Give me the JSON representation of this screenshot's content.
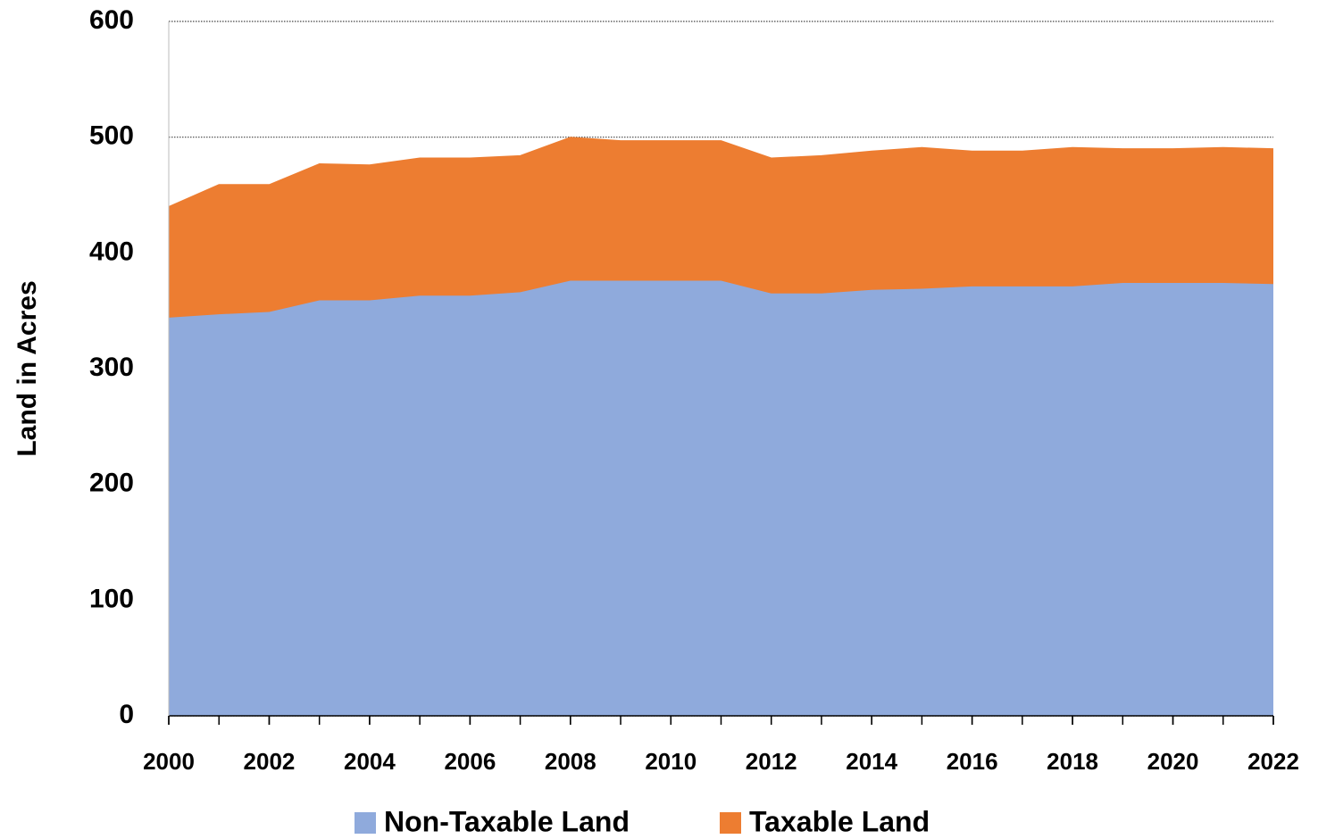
{
  "chart_data": {
    "type": "stacked_area",
    "y_label": "Land in Acres",
    "x": [
      2000,
      2001,
      2002,
      2003,
      2004,
      2005,
      2006,
      2007,
      2008,
      2009,
      2010,
      2011,
      2012,
      2013,
      2014,
      2015,
      2016,
      2017,
      2018,
      2019,
      2020,
      2021,
      2022
    ],
    "series": [
      {
        "name": "Non-Taxable Land",
        "color": "#8faadc",
        "values": [
          344,
          347,
          349,
          359,
          359,
          363,
          363,
          366,
          376,
          376,
          376,
          376,
          365,
          365,
          368,
          369,
          371,
          371,
          371,
          374,
          374,
          374,
          373
        ]
      },
      {
        "name": "Taxable Land",
        "color": "#ed7d31",
        "values": [
          96,
          112,
          110,
          118,
          117,
          119,
          119,
          118,
          124,
          121,
          121,
          121,
          117,
          119,
          120,
          122,
          117,
          117,
          120,
          116,
          116,
          117,
          117
        ]
      }
    ],
    "xlim": [
      2000,
      2022
    ],
    "xticks": [
      2000,
      2002,
      2004,
      2006,
      2008,
      2010,
      2012,
      2014,
      2016,
      2018,
      2020,
      2022
    ],
    "ylim": [
      0,
      600
    ],
    "yticks": [
      0,
      100,
      200,
      300,
      400,
      500,
      600
    ],
    "grid": true,
    "legend": "bottom"
  }
}
